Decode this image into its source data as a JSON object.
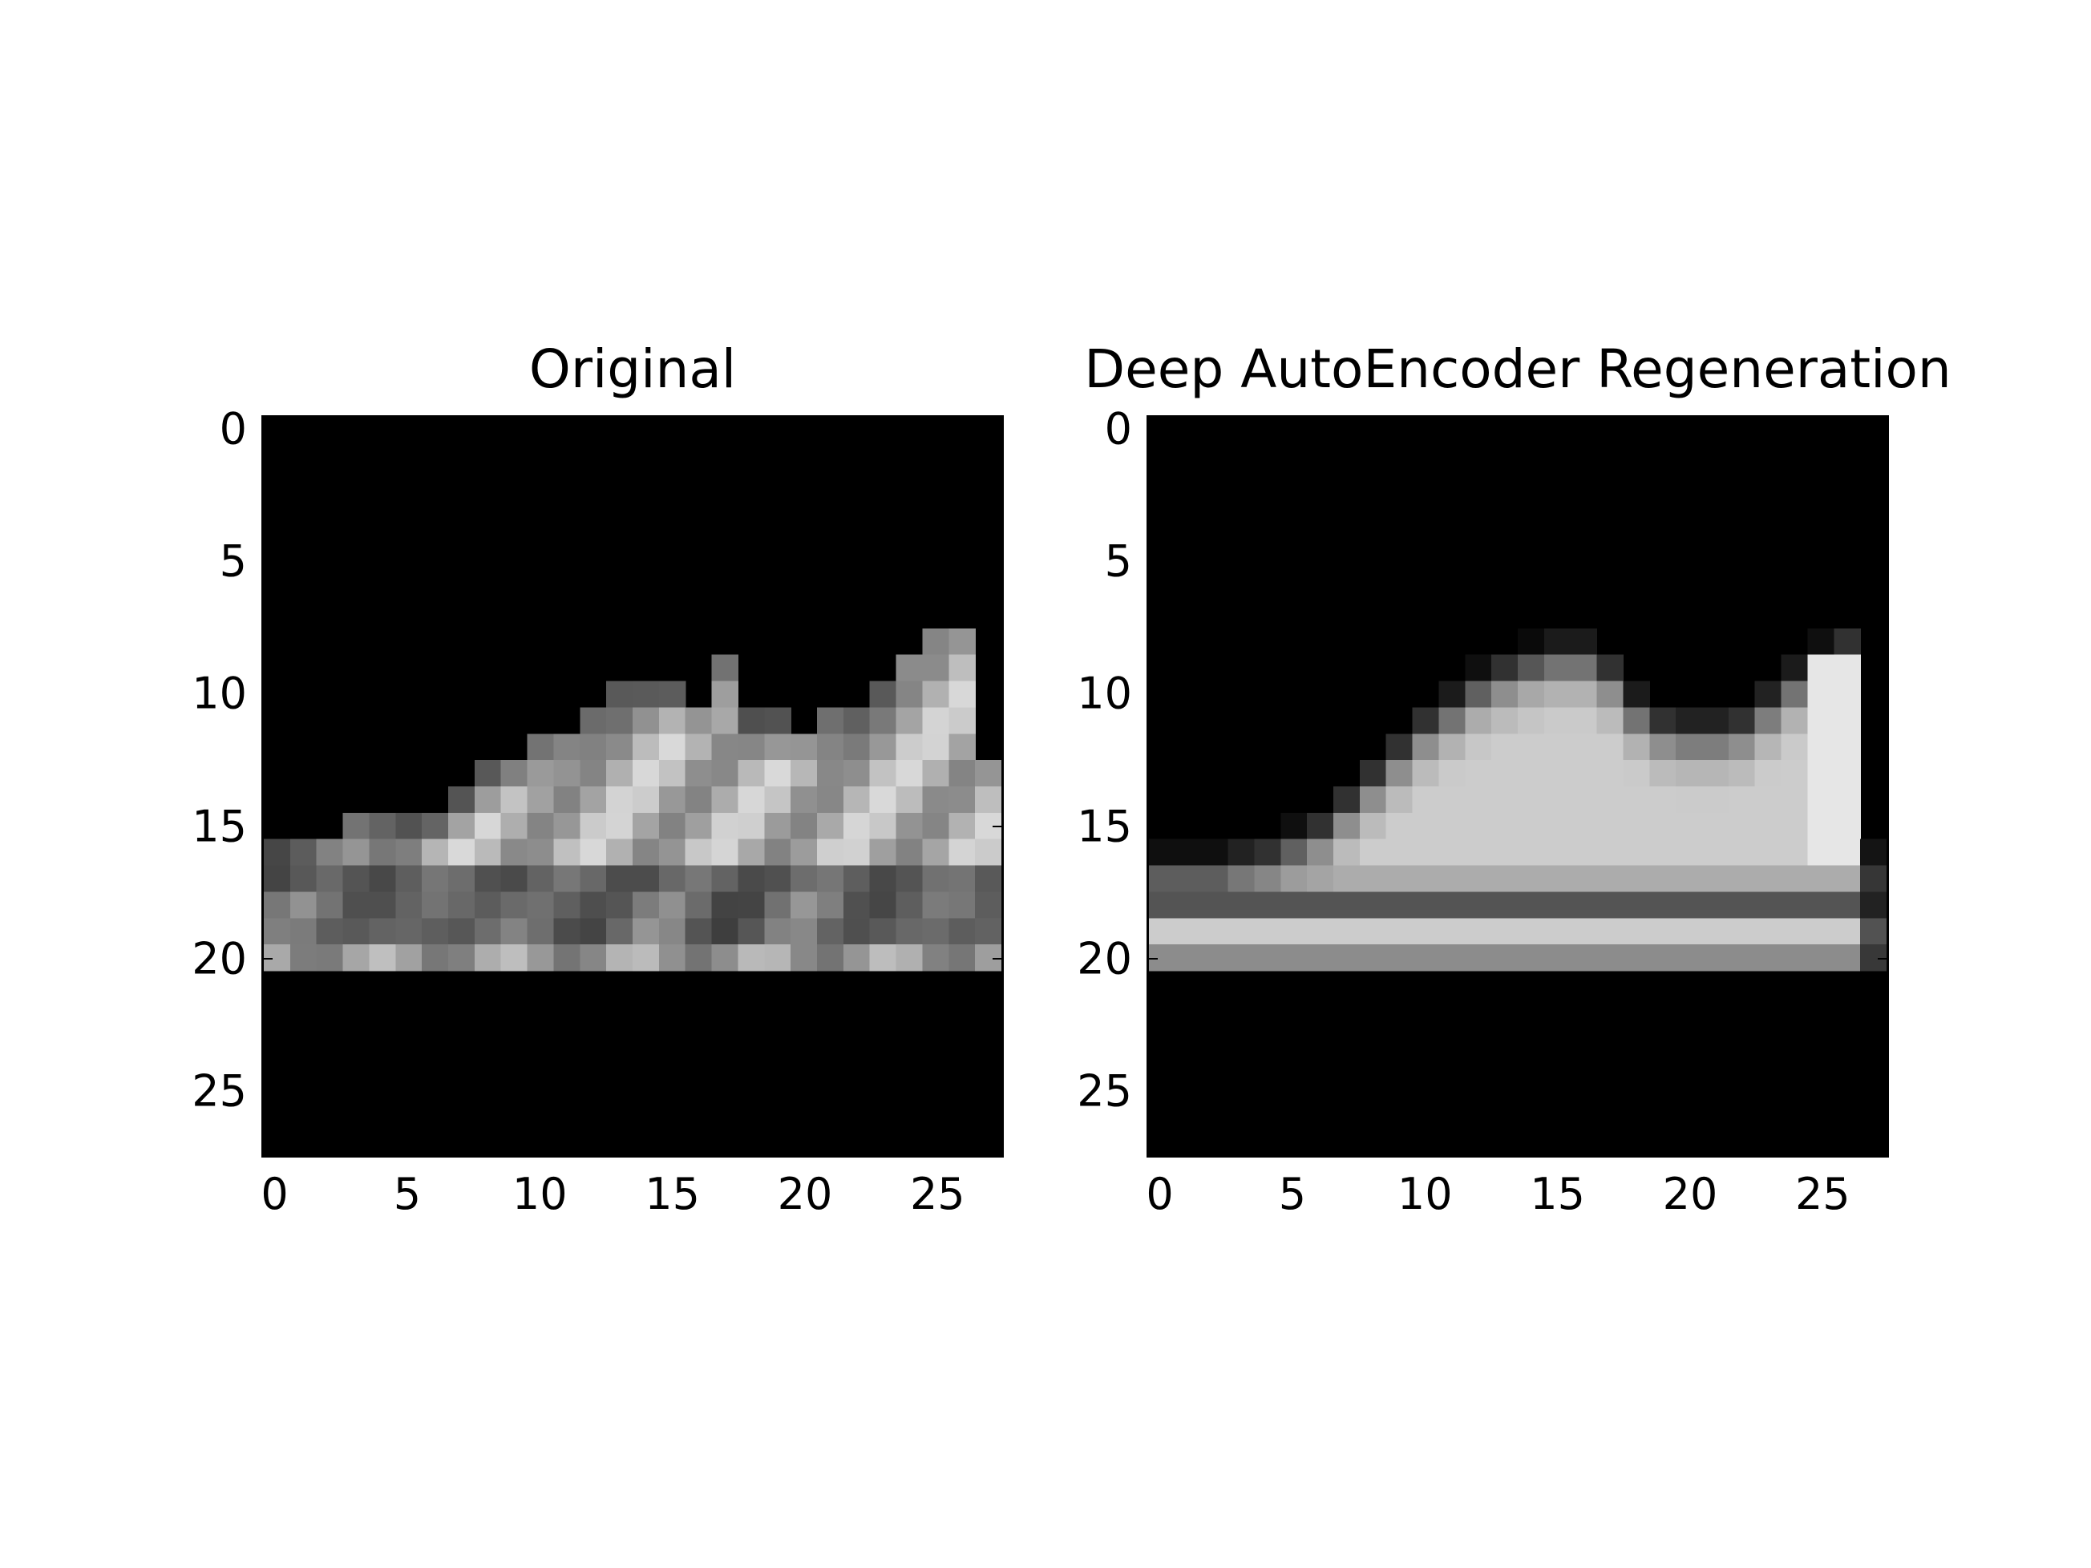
{
  "chart_data": [
    {
      "type": "heatmap",
      "title": "Original",
      "colormap": "gray",
      "xlim": [
        -0.5,
        27.5
      ],
      "ylim": [
        27.5,
        -0.5
      ],
      "xticks": [
        "0",
        "5",
        "10",
        "15",
        "20",
        "25"
      ],
      "yticks": [
        "0",
        "5",
        "10",
        "15",
        "20",
        "25"
      ],
      "rows": 28,
      "cols": 28
    },
    {
      "type": "heatmap",
      "title": "Deep AutoEncoder Regeneration",
      "colormap": "gray",
      "xlim": [
        -0.5,
        27.5
      ],
      "ylim": [
        27.5,
        -0.5
      ],
      "xticks": [
        "0",
        "5",
        "10",
        "15",
        "20",
        "25"
      ],
      "yticks": [
        "0",
        "5",
        "10",
        "15",
        "20",
        "25"
      ],
      "rows": 28,
      "cols": 28
    }
  ]
}
